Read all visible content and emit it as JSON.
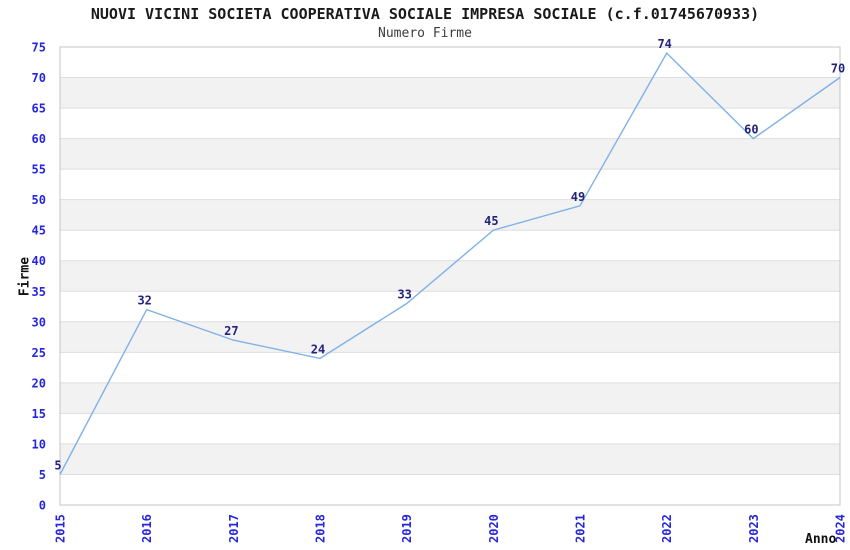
{
  "chart_data": {
    "type": "line",
    "title": "NUOVI VICINI SOCIETA COOPERATIVA SOCIALE IMPRESA SOCIALE (c.f.01745670933)",
    "subtitle": "Numero Firme",
    "xlabel": "Anno",
    "ylabel": "Firme",
    "categories": [
      "2015",
      "2016",
      "2017",
      "2018",
      "2019",
      "2020",
      "2021",
      "2022",
      "2023",
      "2024"
    ],
    "values": [
      5,
      32,
      27,
      24,
      33,
      45,
      49,
      74,
      60,
      70
    ],
    "ylim": [
      0,
      75
    ],
    "y_tick_step": 5,
    "grid": "horizontal-bands-alternating",
    "legend": "none",
    "colors": {
      "line": "#7FB1E8",
      "tick_label": "#2626DD",
      "point_label": "#23237D",
      "band": "#F2F2F2",
      "gridline": "#DEDEDE",
      "plot_border": "#C4C4C4",
      "title": "#1A1A1A",
      "subtitle": "#3D3D3D",
      "axis_label": "#111111",
      "background": "#FFFFFF"
    }
  }
}
